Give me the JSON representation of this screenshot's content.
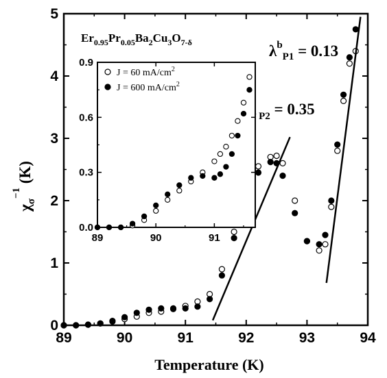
{
  "chart_data": {
    "type": "scatter",
    "xlabel": "Temperature (K)",
    "ylabel": "χσ−1 (K)",
    "xlim": [
      89,
      94
    ],
    "ylim": [
      0,
      5
    ],
    "xticks": [
      "89",
      "90",
      "91",
      "92",
      "93",
      "94"
    ],
    "yticks": [
      "0",
      "1",
      "2",
      "3",
      "4",
      "5"
    ],
    "compound_label": "Er0.95Pr0.05Ba2Cu3O7-δ",
    "annotations": [
      {
        "text": "λP2 = 0.35",
        "symbol": "λ",
        "sub": "P2",
        "value": "= 0.35"
      },
      {
        "text": "λbP1 = 0.13",
        "symbol": "λ",
        "sup": "b",
        "sub": "P1",
        "value": "= 0.13"
      }
    ],
    "fit_lines": [
      {
        "x": [
          91.45,
          92.72
        ],
        "y": [
          0.08,
          3.02
        ]
      },
      {
        "x": [
          93.32,
          93.88
        ],
        "y": [
          0.68,
          4.95
        ]
      }
    ],
    "series": [
      {
        "name": "J = 60 mA/cm2",
        "marker": "open-circle",
        "x": [
          89.0,
          89.2,
          89.4,
          89.6,
          89.8,
          90.0,
          90.2,
          90.4,
          90.6,
          90.8,
          91.0,
          91.2,
          91.4,
          91.6,
          91.8,
          92.0,
          92.2,
          92.4,
          92.5,
          92.6,
          92.8,
          93.0,
          93.2,
          93.3,
          93.4,
          93.5,
          93.6,
          93.7,
          93.8
        ],
        "y": [
          0.0,
          0.0,
          0.01,
          0.03,
          0.06,
          0.1,
          0.14,
          0.2,
          0.22,
          0.26,
          0.31,
          0.38,
          0.5,
          0.9,
          1.5,
          2.1,
          2.55,
          2.7,
          2.72,
          2.6,
          2.0,
          1.35,
          1.2,
          1.3,
          1.9,
          2.8,
          3.6,
          4.2,
          4.4
        ]
      },
      {
        "name": "J = 600 mA/cm2",
        "marker": "filled-circle",
        "x": [
          89.0,
          89.2,
          89.4,
          89.6,
          89.8,
          90.0,
          90.2,
          90.4,
          90.6,
          90.8,
          91.0,
          91.2,
          91.4,
          91.6,
          91.8,
          92.0,
          92.2,
          92.4,
          92.5,
          92.6,
          92.8,
          93.0,
          93.2,
          93.3,
          93.4,
          93.5,
          93.6,
          93.7,
          93.8
        ],
        "y": [
          0.0,
          0.0,
          0.01,
          0.03,
          0.07,
          0.13,
          0.2,
          0.25,
          0.27,
          0.27,
          0.27,
          0.3,
          0.42,
          0.8,
          1.4,
          2.0,
          2.45,
          2.62,
          2.6,
          2.4,
          1.8,
          1.35,
          1.3,
          1.45,
          2.0,
          2.9,
          3.7,
          4.3,
          4.75
        ]
      }
    ],
    "inset": {
      "xlim": [
        89,
        91.7
      ],
      "ylim": [
        0,
        0.9
      ],
      "xticks": [
        "89",
        "90",
        "91"
      ],
      "yticks": [
        "0.0",
        "0.3",
        "0.6",
        "0.9"
      ],
      "legend": [
        {
          "label": "J =   60 mA/cm",
          "sup": "2",
          "marker": "open-circle"
        },
        {
          "label": "J = 600 mA/cm",
          "sup": "2",
          "marker": "filled-circle"
        }
      ],
      "series": [
        {
          "marker": "open-circle",
          "x": [
            89.0,
            89.2,
            89.4,
            89.6,
            89.8,
            90.0,
            90.2,
            90.4,
            90.6,
            90.8,
            91.0,
            91.1,
            91.2,
            91.3,
            91.4,
            91.5,
            91.6
          ],
          "y": [
            0.0,
            0.0,
            0.0,
            0.01,
            0.04,
            0.09,
            0.15,
            0.2,
            0.25,
            0.3,
            0.36,
            0.4,
            0.44,
            0.5,
            0.58,
            0.68,
            0.82
          ]
        },
        {
          "marker": "filled-circle",
          "x": [
            89.0,
            89.2,
            89.4,
            89.6,
            89.8,
            90.0,
            90.2,
            90.4,
            90.6,
            90.8,
            91.0,
            91.1,
            91.2,
            91.3,
            91.4,
            91.5,
            91.6
          ],
          "y": [
            0.0,
            0.0,
            0.0,
            0.02,
            0.06,
            0.12,
            0.18,
            0.23,
            0.27,
            0.28,
            0.27,
            0.29,
            0.33,
            0.4,
            0.5,
            0.62,
            0.75
          ]
        }
      ]
    }
  }
}
